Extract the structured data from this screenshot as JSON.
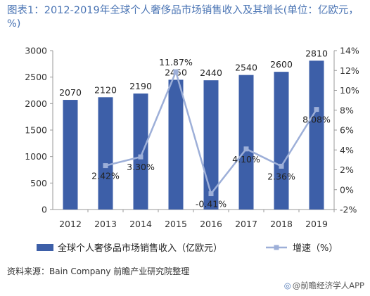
{
  "title": "图表1：2012-2019年全球个人奢侈品市场销售收入及其增长(单位：亿欧元，%)",
  "source": "资料来源：Bain Company 前瞻产业研究院整理",
  "brand": "@前瞻经济学人APP",
  "colors": {
    "bar": "#3d5fa8",
    "line": "#9dafd8",
    "title": "#4a74b4"
  },
  "chart_data": {
    "type": "bar",
    "categories": [
      "2012",
      "2013",
      "2014",
      "2015",
      "2016",
      "2017",
      "2018",
      "2019"
    ],
    "series": [
      {
        "name": "全球个人奢侈品市场销售收入（亿欧元）",
        "type": "bar",
        "axis": "left",
        "values": [
          2070,
          2120,
          2190,
          2450,
          2440,
          2540,
          2600,
          2810
        ],
        "labels": [
          "2070",
          "2120",
          "2190",
          "2450",
          "2440",
          "2540",
          "2600",
          "2810"
        ]
      },
      {
        "name": "增速（%）",
        "type": "line",
        "axis": "right",
        "values": [
          null,
          2.42,
          3.3,
          11.87,
          -0.41,
          4.1,
          2.36,
          8.08
        ],
        "labels": [
          "",
          "2.42%",
          "3.30%",
          "11.87%",
          "-0.41%",
          "4.10%",
          "2.36%",
          "8.08%"
        ]
      }
    ],
    "y_left": {
      "min": 0,
      "max": 3000,
      "ticks": [
        "0",
        "500",
        "1000",
        "1500",
        "2000",
        "2500",
        "3000"
      ]
    },
    "y_right": {
      "min": -2,
      "max": 14,
      "ticks": [
        "-2%",
        "0%",
        "2%",
        "4%",
        "6%",
        "8%",
        "10%",
        "12%",
        "14%"
      ]
    },
    "grid": false,
    "legend": "bottom"
  }
}
